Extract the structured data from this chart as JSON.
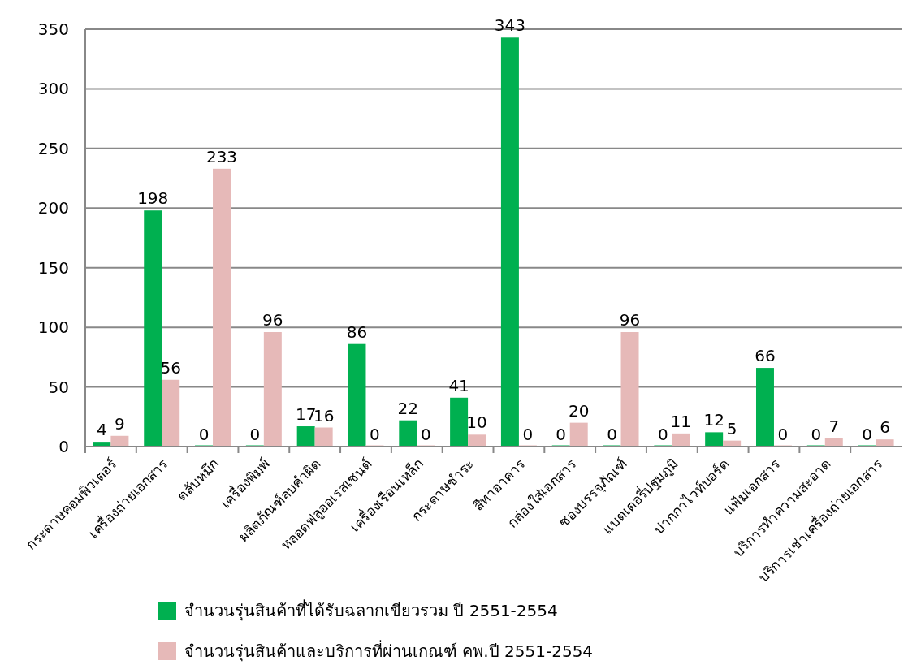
{
  "chart_data": {
    "type": "bar",
    "categories": [
      "กระดาษคอมพิวเตอร์",
      "เครื่องถ่ายเอกสาร",
      "ตลับหมึก",
      "เครื่องพิมพ์",
      "ผลิตภัณฑ์ลบคำผิด",
      "หลอดฟลูออเรสเซนต์",
      "เครื่องเรือนเหล็ก",
      "กระดาษชำระ",
      "สีทาอาคาร",
      "กล่องใส่เอกสาร",
      "ซองบรรจุภัณฑ์",
      "แบตเตอรี่ปฐมภูมิ",
      "ปากกาไวท์บอร์ด",
      "แฟ้มเอกสาร",
      "บริการทำความสะอาด",
      "บริการเช่าเครื่องถ่ายเอกสาร"
    ],
    "series": [
      {
        "name": "จำนวนรุ่นสินค้าที่ได้รับฉลากเขียวรวม ปี 2551-2554",
        "color": "#00b050",
        "values": [
          4,
          198,
          0,
          0,
          17,
          86,
          22,
          41,
          343,
          0,
          0,
          0,
          12,
          66,
          0,
          0
        ]
      },
      {
        "name": "จำนวนรุ่นสินค้าและบริการที่ผ่านเกณฑ์ คพ.ปี 2551-2554",
        "color": "#e6b9b8",
        "values": [
          9,
          56,
          233,
          96,
          16,
          0,
          0,
          10,
          0,
          20,
          96,
          11,
          5,
          0,
          7,
          6
        ]
      }
    ],
    "ylim": [
      0,
      350
    ],
    "yticks": [
      0,
      50,
      100,
      150,
      200,
      250,
      300,
      350
    ],
    "grid": "y",
    "data_labels": true,
    "legend": "bottom"
  }
}
